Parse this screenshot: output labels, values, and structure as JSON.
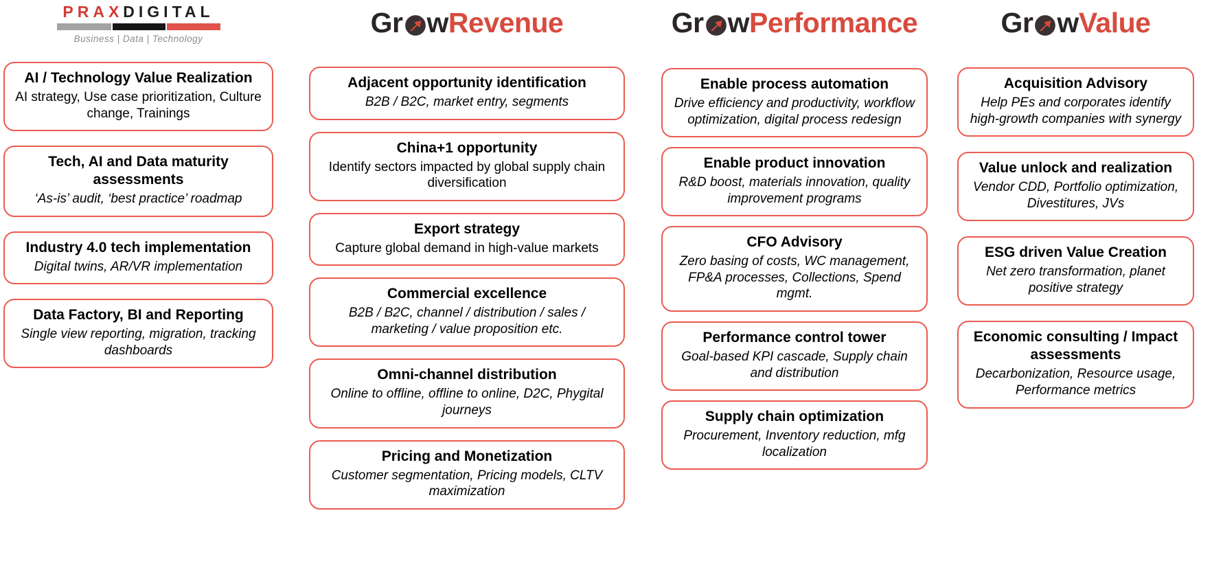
{
  "page": {
    "background": "#ffffff"
  },
  "colors": {
    "card_border": "#eb5b4f",
    "grow_black": "#2a2627",
    "grow_red": "#d74b3e",
    "prax_red": "#d23b34",
    "prax_dark": "#1f1f1f",
    "bar_gray": "#a3a3a3",
    "bar_black": "#161616",
    "bar_red": "#e0524a",
    "tagline_gray": "#8b8b8b"
  },
  "praxdigital": {
    "name_red": "PRAX",
    "name_black": "DIGITAL",
    "tagline": "Business | Data | Technology"
  },
  "columns": [
    {
      "id": "praxdigital",
      "cards": [
        {
          "title": "AI / Technology Value Realization",
          "subtitle": "AI strategy, Use case prioritization, Culture change, Trainings",
          "subtitle_italic": false
        },
        {
          "title": "Tech, AI and Data maturity assessments",
          "subtitle": "‘As-is’ audit, ‘best practice’ roadmap",
          "subtitle_italic": true
        },
        {
          "title": "Industry 4.0 tech implementation",
          "subtitle": "Digital twins, AR/VR implementation",
          "subtitle_italic": true
        },
        {
          "title": "Data Factory, BI and Reporting",
          "subtitle": "Single view reporting, migration, tracking dashboards",
          "subtitle_italic": true
        }
      ]
    },
    {
      "id": "grow-revenue",
      "logo": {
        "prefix": "Gr",
        "rest": "w",
        "suffix": "Revenue",
        "icon": "globe-growth-icon"
      },
      "cards": [
        {
          "title": "Adjacent opportunity identification",
          "subtitle": "B2B / B2C, market entry, segments",
          "subtitle_italic": true
        },
        {
          "title": "China+1 opportunity",
          "subtitle": "Identify sectors impacted by global supply chain diversification",
          "subtitle_italic": false
        },
        {
          "title": "Export strategy",
          "subtitle": "Capture global demand in high-value markets",
          "subtitle_italic": false
        },
        {
          "title": "Commercial excellence",
          "subtitle": "B2B / B2C, channel / distribution / sales / marketing / value proposition etc.",
          "subtitle_italic": true
        },
        {
          "title": "Omni-channel distribution",
          "subtitle": "Online to offline, offline to online, D2C, Phygital journeys",
          "subtitle_italic": true
        },
        {
          "title": "Pricing and Monetization",
          "subtitle": "Customer segmentation, Pricing models, CLTV maximization",
          "subtitle_italic": true
        }
      ]
    },
    {
      "id": "grow-performance",
      "logo": {
        "prefix": "Gr",
        "rest": "w",
        "suffix": "Performance",
        "icon": "globe-growth-icon"
      },
      "cards": [
        {
          "title": "Enable process automation",
          "subtitle": "Drive efficiency and productivity, workflow optimization, digital process redesign",
          "subtitle_italic": true
        },
        {
          "title": "Enable product innovation",
          "subtitle": "R&D boost, materials innovation, quality improvement programs",
          "subtitle_italic": true
        },
        {
          "title": "CFO Advisory",
          "subtitle": "Zero basing of costs, WC management, FP&A processes, Collections, Spend mgmt.",
          "subtitle_italic": true
        },
        {
          "title": "Performance control tower",
          "subtitle": "Goal-based KPI cascade, Supply chain and distribution",
          "subtitle_italic": true
        },
        {
          "title": "Supply chain optimization",
          "subtitle": "Procurement, Inventory reduction, mfg localization",
          "subtitle_italic": true
        }
      ]
    },
    {
      "id": "grow-value",
      "logo": {
        "prefix": "Gr",
        "rest": "w",
        "suffix": "Value",
        "icon": "globe-growth-icon"
      },
      "cards": [
        {
          "title": "Acquisition Advisory",
          "subtitle": "Help PEs and corporates identify high-growth companies with synergy",
          "subtitle_italic": true
        },
        {
          "title": "Value unlock and realization",
          "subtitle": "Vendor CDD, Portfolio optimization, Divestitures, JVs",
          "subtitle_italic": true
        },
        {
          "title": "ESG driven Value Creation",
          "subtitle": "Net zero transformation, planet positive strategy",
          "subtitle_italic": true
        },
        {
          "title": "Economic consulting / Impact assessments",
          "subtitle": "Decarbonization, Resource usage, Performance metrics",
          "subtitle_italic": true
        }
      ]
    }
  ]
}
